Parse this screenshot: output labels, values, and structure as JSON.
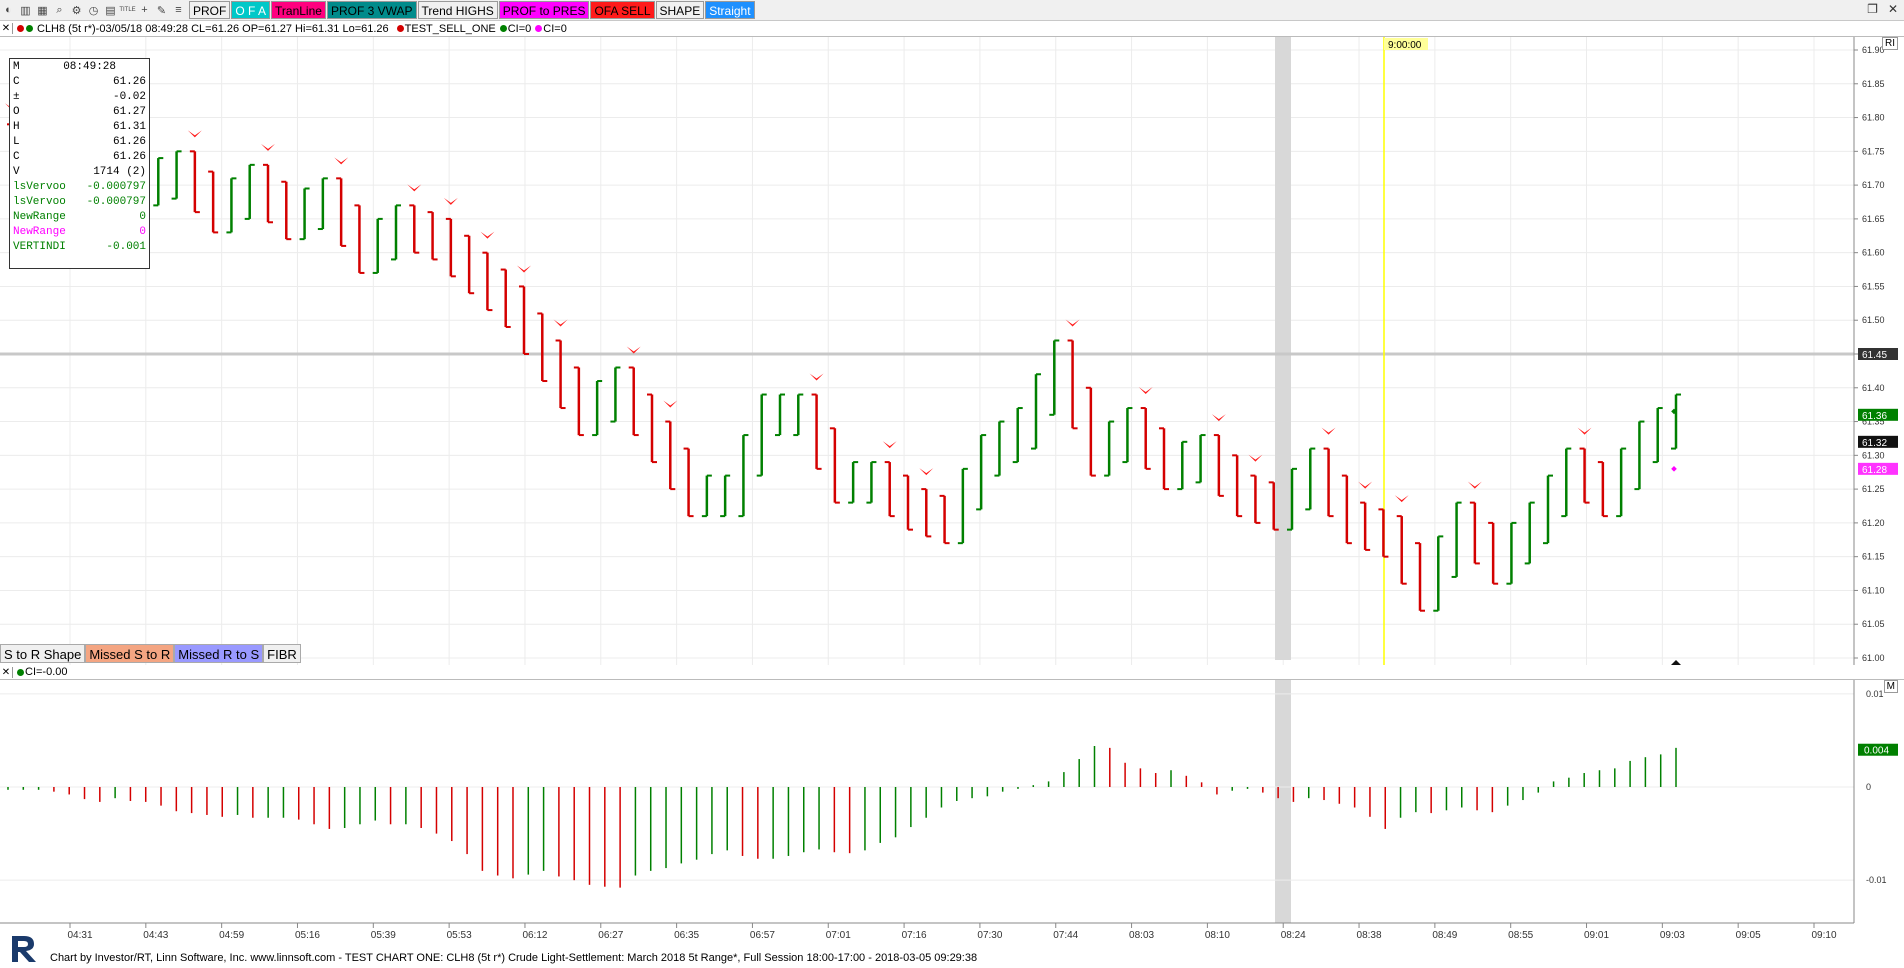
{
  "toolbar": {
    "icons": [
      "pie-icon",
      "bar-icon",
      "chart-icon",
      "zoom-icon",
      "gear-icon",
      "clock-icon",
      "chart-small-icon",
      "title-icon",
      "crosshair-icon",
      "drawing-icon",
      "fib-icon"
    ],
    "title_icon_label": "TITLE",
    "buttons": [
      {
        "label": "PROF",
        "bg": "#f0f0f0",
        "fg": "#000000"
      },
      {
        "label": "O  F  A",
        "bg": "#00c8c8",
        "fg": "#ffffff"
      },
      {
        "label": "TranLine",
        "bg": "#ff007f",
        "fg": "#000000"
      },
      {
        "label": "PROF 3 VWAP",
        "bg": "#008b8b",
        "fg": "#000000"
      },
      {
        "label": "Trend HIGHS",
        "bg": "#f0f0f0",
        "fg": "#000000"
      },
      {
        "label": "PROF to PRES",
        "bg": "#ff00ff",
        "fg": "#000000"
      },
      {
        "label": "OFA SELL",
        "bg": "#ff1a1a",
        "fg": "#000000"
      },
      {
        "label": "SHAPE",
        "bg": "#f0f0f0",
        "fg": "#000000"
      },
      {
        "label": "Straight",
        "bg": "#1e90ff",
        "fg": "#ffffff"
      }
    ]
  },
  "infobar": {
    "symbol_text": "CLH8 (5t r*)-03/05/18 08:49:28 CL=61.26 OP=61.27 Hi=61.31 Lo=61.26",
    "signal_text": "TEST_SELL_ONE",
    "ci1": "CI=0",
    "ci2": "CI=0"
  },
  "databox": {
    "title_label": "M",
    "title_time": "08:49:28",
    "rows": [
      {
        "label": "C",
        "value": "61.26",
        "color": "#000000"
      },
      {
        "label": "±",
        "value": "-0.02",
        "color": "#000000"
      },
      {
        "label": "O",
        "value": "61.27",
        "color": "#000000"
      },
      {
        "label": "H",
        "value": "61.31",
        "color": "#000000"
      },
      {
        "label": "L",
        "value": "61.26",
        "color": "#000000"
      },
      {
        "label": "C",
        "value": "61.26",
        "color": "#000000"
      },
      {
        "label": "V",
        "value": "1714 (2)",
        "color": "#000000"
      },
      {
        "label": "lsVervoo",
        "value": "-0.000797",
        "color": "#008000"
      },
      {
        "label": "lsVervoo",
        "value": "-0.000797",
        "color": "#008000"
      },
      {
        "label": "NewRange",
        "value": "0",
        "color": "#008000"
      },
      {
        "label": "NewRange",
        "value": "0",
        "color": "#ff00ff"
      },
      {
        "label": "VERTINDI",
        "value": "-0.001",
        "color": "#008000"
      }
    ]
  },
  "legend_tabs": [
    {
      "label": "S to R  Shape",
      "bg": "#f0f0f0"
    },
    {
      "label": "Missed S to R",
      "bg": "#f4a582"
    },
    {
      "label": "Missed R to S",
      "bg": "#9999ff"
    },
    {
      "label": "FIBR",
      "bg": "#f0f0f0"
    }
  ],
  "vline_label": "9:00:00",
  "ri_label": "RI",
  "m_label": "M",
  "price_axis": {
    "ticks": [
      "61.90",
      "61.85",
      "61.80",
      "61.75",
      "61.70",
      "61.65",
      "61.60",
      "61.55",
      "61.50",
      "61.45",
      "61.40",
      "61.35",
      "61.30",
      "61.25",
      "61.20",
      "61.15",
      "61.10",
      "61.05",
      "61.00"
    ],
    "badge_hline": "61.45",
    "badge_green": "61.36",
    "badge_last": "61.32",
    "badge_magenta": "61.28"
  },
  "indicator": {
    "ci_label": "CI=-0.00",
    "ticks": [
      "0.01",
      "0",
      "-0.01"
    ],
    "badge_value": "0.004"
  },
  "time_axis": [
    "04:31",
    "04:43",
    "04:59",
    "05:16",
    "05:39",
    "05:53",
    "06:12",
    "06:27",
    "06:35",
    "06:57",
    "07:01",
    "07:16",
    "07:30",
    "07:44",
    "08:03",
    "08:10",
    "08:24",
    "08:38",
    "08:49",
    "08:55",
    "09:01",
    "09:03",
    "09:05",
    "09:10"
  ],
  "footer_text": "Chart by Investor/RT, Linn Software, Inc. www.linnsoft.com - TEST CHART ONE: CLH8 (5t r*) Crude Light-Settlement: March 2018 5t Range*, Full Session 18:00-17:00 - 2018-03-05 09:29:38",
  "colors": {
    "up": "#008000",
    "down": "#d40000",
    "arrow": "#ff1a1a",
    "vline": "#ffff00",
    "hline": "#c8c8c8",
    "band": "#d8d8d8"
  },
  "chart_data": [
    {
      "type": "ohlc",
      "title": "CLH8 (5t r*)",
      "ylim": [
        61.0,
        61.9
      ],
      "x": [
        "04:31",
        "04:43",
        "04:59",
        "05:16",
        "05:39",
        "05:53",
        "06:12",
        "06:27",
        "06:35",
        "06:57",
        "07:01",
        "07:16",
        "07:30",
        "07:44",
        "08:03",
        "08:10",
        "08:24",
        "08:38",
        "08:49",
        "08:55",
        "09:01",
        "09:03",
        "09:05",
        "09:10"
      ],
      "close_path": [
        61.74,
        61.72,
        61.68,
        61.7,
        61.72,
        61.66,
        61.7,
        61.65,
        61.68,
        61.6,
        61.64,
        61.62,
        61.57,
        61.52,
        61.44,
        61.36,
        61.4,
        61.32,
        61.24,
        61.24,
        61.36,
        61.36,
        61.26,
        61.26,
        61.22,
        61.2,
        61.3,
        61.34,
        61.44,
        61.3,
        61.34,
        61.28,
        61.3,
        61.24,
        61.22,
        61.28,
        61.2,
        61.18,
        61.1,
        61.2,
        61.14,
        61.2,
        61.28,
        61.24,
        61.32,
        61.36
      ],
      "last": 61.32,
      "hline": 61.45
    },
    {
      "type": "bar",
      "title": "CI",
      "ylim": [
        -0.011,
        0.011
      ],
      "values": [
        -0.0003,
        -0.0003,
        -0.0003,
        -0.0005,
        -0.0008,
        -0.0013,
        -0.0016,
        -0.0012,
        -0.0015,
        -0.0016,
        -0.002,
        -0.0026,
        -0.0028,
        -0.003,
        -0.0032,
        -0.003,
        -0.0033,
        -0.0033,
        -0.0033,
        -0.0035,
        -0.004,
        -0.0045,
        -0.0044,
        -0.004,
        -0.0036,
        -0.004,
        -0.004,
        -0.0044,
        -0.005,
        -0.0058,
        -0.0072,
        -0.009,
        -0.0095,
        -0.0098,
        -0.0094,
        -0.009,
        -0.0096,
        -0.01,
        -0.0105,
        -0.0107,
        -0.0108,
        -0.0095,
        -0.009,
        -0.0087,
        -0.0082,
        -0.0078,
        -0.0072,
        -0.0068,
        -0.0074,
        -0.0077,
        -0.0077,
        -0.0074,
        -0.007,
        -0.0067,
        -0.007,
        -0.0071,
        -0.0068,
        -0.006,
        -0.0054,
        -0.0043,
        -0.0033,
        -0.0022,
        -0.0015,
        -0.0012,
        -0.001,
        -0.0005,
        -0.0002,
        0.0002,
        0.0006,
        0.0016,
        0.003,
        0.0044,
        0.0042,
        0.0026,
        0.002,
        0.0015,
        0.0018,
        0.0012,
        0.0005,
        -0.0008,
        -0.0004,
        -0.0002,
        -0.0006,
        -0.0012,
        -0.0016,
        -0.0012,
        -0.0014,
        -0.0018,
        -0.0022,
        -0.0032,
        -0.0045,
        -0.0033,
        -0.0027,
        -0.0028,
        -0.0025,
        -0.0022,
        -0.0025,
        -0.0027,
        -0.002,
        -0.0014,
        -0.0006,
        0.0006,
        0.001,
        0.0015,
        0.0018,
        0.002,
        0.0028,
        0.0032,
        0.0035,
        0.0042
      ]
    }
  ]
}
